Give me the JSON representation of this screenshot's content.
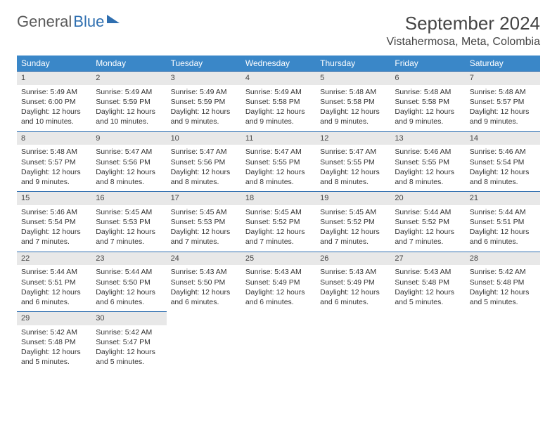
{
  "logo": {
    "part1": "General",
    "part2": "Blue"
  },
  "title": "September 2024",
  "location": "Vistahermosa, Meta, Colombia",
  "colors": {
    "header_bg": "#3a87c8",
    "border": "#2f6fb0",
    "datebar_bg": "#e8e8e8",
    "text": "#333333"
  },
  "day_headers": [
    "Sunday",
    "Monday",
    "Tuesday",
    "Wednesday",
    "Thursday",
    "Friday",
    "Saturday"
  ],
  "days": [
    {
      "n": 1,
      "sunrise": "5:49 AM",
      "sunset": "6:00 PM",
      "daylight": "12 hours and 10 minutes."
    },
    {
      "n": 2,
      "sunrise": "5:49 AM",
      "sunset": "5:59 PM",
      "daylight": "12 hours and 10 minutes."
    },
    {
      "n": 3,
      "sunrise": "5:49 AM",
      "sunset": "5:59 PM",
      "daylight": "12 hours and 9 minutes."
    },
    {
      "n": 4,
      "sunrise": "5:49 AM",
      "sunset": "5:58 PM",
      "daylight": "12 hours and 9 minutes."
    },
    {
      "n": 5,
      "sunrise": "5:48 AM",
      "sunset": "5:58 PM",
      "daylight": "12 hours and 9 minutes."
    },
    {
      "n": 6,
      "sunrise": "5:48 AM",
      "sunset": "5:58 PM",
      "daylight": "12 hours and 9 minutes."
    },
    {
      "n": 7,
      "sunrise": "5:48 AM",
      "sunset": "5:57 PM",
      "daylight": "12 hours and 9 minutes."
    },
    {
      "n": 8,
      "sunrise": "5:48 AM",
      "sunset": "5:57 PM",
      "daylight": "12 hours and 9 minutes."
    },
    {
      "n": 9,
      "sunrise": "5:47 AM",
      "sunset": "5:56 PM",
      "daylight": "12 hours and 8 minutes."
    },
    {
      "n": 10,
      "sunrise": "5:47 AM",
      "sunset": "5:56 PM",
      "daylight": "12 hours and 8 minutes."
    },
    {
      "n": 11,
      "sunrise": "5:47 AM",
      "sunset": "5:55 PM",
      "daylight": "12 hours and 8 minutes."
    },
    {
      "n": 12,
      "sunrise": "5:47 AM",
      "sunset": "5:55 PM",
      "daylight": "12 hours and 8 minutes."
    },
    {
      "n": 13,
      "sunrise": "5:46 AM",
      "sunset": "5:55 PM",
      "daylight": "12 hours and 8 minutes."
    },
    {
      "n": 14,
      "sunrise": "5:46 AM",
      "sunset": "5:54 PM",
      "daylight": "12 hours and 8 minutes."
    },
    {
      "n": 15,
      "sunrise": "5:46 AM",
      "sunset": "5:54 PM",
      "daylight": "12 hours and 7 minutes."
    },
    {
      "n": 16,
      "sunrise": "5:45 AM",
      "sunset": "5:53 PM",
      "daylight": "12 hours and 7 minutes."
    },
    {
      "n": 17,
      "sunrise": "5:45 AM",
      "sunset": "5:53 PM",
      "daylight": "12 hours and 7 minutes."
    },
    {
      "n": 18,
      "sunrise": "5:45 AM",
      "sunset": "5:52 PM",
      "daylight": "12 hours and 7 minutes."
    },
    {
      "n": 19,
      "sunrise": "5:45 AM",
      "sunset": "5:52 PM",
      "daylight": "12 hours and 7 minutes."
    },
    {
      "n": 20,
      "sunrise": "5:44 AM",
      "sunset": "5:52 PM",
      "daylight": "12 hours and 7 minutes."
    },
    {
      "n": 21,
      "sunrise": "5:44 AM",
      "sunset": "5:51 PM",
      "daylight": "12 hours and 6 minutes."
    },
    {
      "n": 22,
      "sunrise": "5:44 AM",
      "sunset": "5:51 PM",
      "daylight": "12 hours and 6 minutes."
    },
    {
      "n": 23,
      "sunrise": "5:44 AM",
      "sunset": "5:50 PM",
      "daylight": "12 hours and 6 minutes."
    },
    {
      "n": 24,
      "sunrise": "5:43 AM",
      "sunset": "5:50 PM",
      "daylight": "12 hours and 6 minutes."
    },
    {
      "n": 25,
      "sunrise": "5:43 AM",
      "sunset": "5:49 PM",
      "daylight": "12 hours and 6 minutes."
    },
    {
      "n": 26,
      "sunrise": "5:43 AM",
      "sunset": "5:49 PM",
      "daylight": "12 hours and 6 minutes."
    },
    {
      "n": 27,
      "sunrise": "5:43 AM",
      "sunset": "5:48 PM",
      "daylight": "12 hours and 5 minutes."
    },
    {
      "n": 28,
      "sunrise": "5:42 AM",
      "sunset": "5:48 PM",
      "daylight": "12 hours and 5 minutes."
    },
    {
      "n": 29,
      "sunrise": "5:42 AM",
      "sunset": "5:48 PM",
      "daylight": "12 hours and 5 minutes."
    },
    {
      "n": 30,
      "sunrise": "5:42 AM",
      "sunset": "5:47 PM",
      "daylight": "12 hours and 5 minutes."
    }
  ],
  "labels": {
    "sunrise": "Sunrise: ",
    "sunset": "Sunset: ",
    "daylight": "Daylight: "
  },
  "grid": {
    "start_weekday": 0,
    "total_cells": 35
  }
}
